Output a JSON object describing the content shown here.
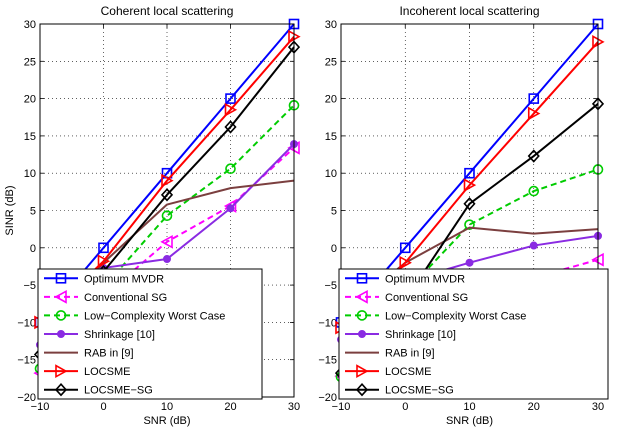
{
  "chart_data": [
    {
      "type": "line",
      "title": "Coherent local scattering",
      "xlabel": "SNR (dB)",
      "ylabel": "SINR (dB)",
      "x": [
        -10,
        0,
        10,
        20,
        30
      ],
      "xlim": [
        -10,
        30
      ],
      "ylim": [
        -20,
        30
      ],
      "xticks": [
        "−10",
        "0",
        "10",
        "20",
        "30"
      ],
      "yticks": [
        "−20",
        "−15",
        "−10",
        "−5",
        "0",
        "5",
        "10",
        "15",
        "20",
        "25",
        "30"
      ],
      "grid": "dotted",
      "legend_position": "bottom-right",
      "series": [
        {
          "name": "Optimum MVDR",
          "color": "#0000ff",
          "dash": "solid",
          "marker": "square",
          "values": [
            -10,
            0,
            10,
            20,
            30
          ]
        },
        {
          "name": "Conventional SG",
          "color": "#ff00ff",
          "dash": "dashed",
          "marker": "triangle-left",
          "values": [
            -16.8,
            -6.5,
            0.8,
            5.6,
            13.4
          ]
        },
        {
          "name": "Low−Complexity Worst Case",
          "color": "#00cc00",
          "dash": "dashed",
          "marker": "circle-open",
          "values": [
            -16.2,
            -5.3,
            4.3,
            10.6,
            19.1
          ]
        },
        {
          "name": "Shrinkage [10]",
          "color": "#8a2be2",
          "dash": "solid",
          "marker": "circle-filled",
          "values": [
            -13.0,
            -2.7,
            -1.5,
            5.3,
            13.9
          ]
        },
        {
          "name": "RAB in [9]",
          "color": "#7b3f3f",
          "dash": "solid",
          "marker": "none",
          "values": [
            -11.0,
            -2.0,
            5.8,
            8.0,
            9.0
          ]
        },
        {
          "name": "LOCSME",
          "color": "#ff0000",
          "dash": "solid",
          "marker": "triangle-right",
          "values": [
            -10,
            -1.8,
            9.0,
            18.5,
            28.3
          ]
        },
        {
          "name": "LOCSME−SG",
          "color": "#000000",
          "dash": "solid",
          "marker": "diamond",
          "values": [
            -14.3,
            -3.2,
            7.1,
            16.2,
            26.9
          ]
        }
      ]
    },
    {
      "type": "line",
      "title": "Incoherent local scattering",
      "xlabel": "SNR (dB)",
      "ylabel": "",
      "x": [
        -10,
        0,
        10,
        20,
        30
      ],
      "xlim": [
        -10,
        30
      ],
      "ylim": [
        -20,
        30
      ],
      "xticks": [
        "−10",
        "0",
        "10",
        "20",
        "30"
      ],
      "yticks": [
        "−20",
        "−15",
        "−10",
        "−5",
        "0",
        "5",
        "10",
        "15",
        "20",
        "25",
        "30"
      ],
      "grid": "dotted",
      "legend_position": "bottom-right",
      "series": [
        {
          "name": "Optimum MVDR",
          "color": "#0000ff",
          "dash": "solid",
          "marker": "square",
          "values": [
            -10,
            0,
            10,
            20,
            30
          ]
        },
        {
          "name": "Conventional SG",
          "color": "#ff00ff",
          "dash": "dashed",
          "marker": "triangle-left",
          "values": [
            -17.2,
            -10.5,
            -6.5,
            -4.0,
            -1.6
          ]
        },
        {
          "name": "Low−Complexity Worst Case",
          "color": "#00cc00",
          "dash": "dashed",
          "marker": "circle-open",
          "values": [
            -17.3,
            -6.0,
            3.1,
            7.6,
            10.5
          ]
        },
        {
          "name": "Shrinkage [10]",
          "color": "#8a2be2",
          "dash": "solid",
          "marker": "circle-filled",
          "values": [
            -12.3,
            -4.5,
            -2.0,
            0.3,
            1.6
          ]
        },
        {
          "name": "RAB in [9]",
          "color": "#7b3f3f",
          "dash": "solid",
          "marker": "none",
          "values": [
            -9.0,
            -2.0,
            2.7,
            1.9,
            2.5
          ]
        },
        {
          "name": "LOCSME",
          "color": "#ff0000",
          "dash": "solid",
          "marker": "triangle-right",
          "values": [
            -10.7,
            -2.0,
            8.4,
            18.0,
            27.6
          ]
        },
        {
          "name": "LOCSME−SG",
          "color": "#000000",
          "dash": "solid",
          "marker": "diamond",
          "values": [
            -16.8,
            -7.0,
            5.9,
            12.3,
            19.3
          ]
        }
      ]
    }
  ]
}
